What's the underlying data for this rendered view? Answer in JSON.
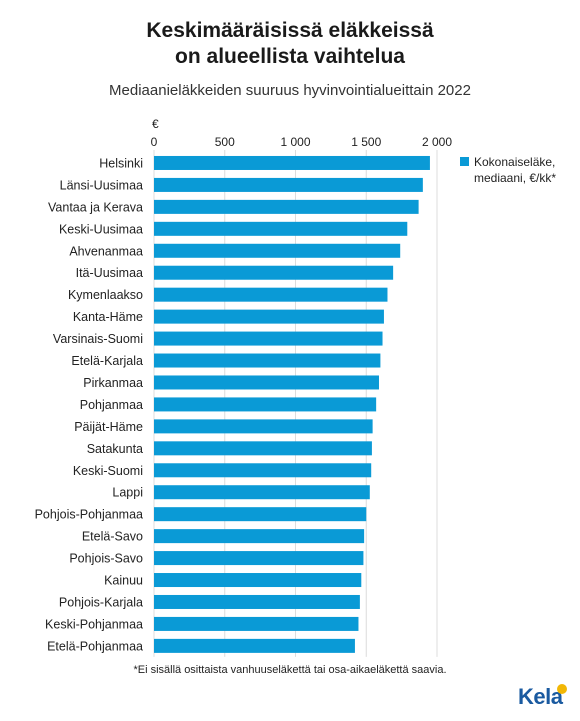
{
  "title_lines": [
    "Keskimääräisissä eläkkeissä",
    "on alueellista vaihtelua"
  ],
  "subtitle": "Mediaanieläkkeiden suuruus hyvinvointialueittain 2022",
  "footnote": "*Ei sisällä osittaista vanhuuseläkettä tai osa-aikaeläkettä saavia.",
  "logo_text": "Kela",
  "colors": {
    "bar": "#0a9ad6",
    "logo": "#1a5aa0",
    "logo_dot": "#f2b705"
  },
  "chart_data": {
    "type": "bar",
    "orientation": "horizontal",
    "axis_unit": "€",
    "xlim": [
      0,
      2000
    ],
    "ticks": [
      0,
      500,
      1000,
      1500,
      2000
    ],
    "tick_labels": [
      "0",
      "500",
      "1 000",
      "1 500",
      "2 000"
    ],
    "grid": true,
    "legend_position": "top-right",
    "series": [
      {
        "name": "Kokonaiseläke, mediaani, €/kk*",
        "color": "#0a9ad6",
        "categories": [
          "Helsinki",
          "Länsi-Uusimaa",
          "Vantaa ja Kerava",
          "Keski-Uusimaa",
          "Ahvenanmaa",
          "Itä-Uusimaa",
          "Kymenlaakso",
          "Kanta-Häme",
          "Varsinais-Suomi",
          "Etelä-Karjala",
          "Pirkanmaa",
          "Pohjanmaa",
          "Päijät-Häme",
          "Satakunta",
          "Keski-Suomi",
          "Lappi",
          "Pohjois-Pohjanmaa",
          "Etelä-Savo",
          "Pohjois-Savo",
          "Kainuu",
          "Pohjois-Karjala",
          "Keski-Pohjanmaa",
          "Etelä-Pohjanmaa"
        ],
        "values": [
          1950,
          1900,
          1870,
          1790,
          1740,
          1690,
          1650,
          1625,
          1615,
          1600,
          1590,
          1570,
          1545,
          1540,
          1535,
          1525,
          1500,
          1485,
          1480,
          1465,
          1455,
          1445,
          1420
        ]
      }
    ],
    "legend_label_lines": [
      "Kokonaiseläke,",
      "mediaani, €/kk*"
    ]
  }
}
